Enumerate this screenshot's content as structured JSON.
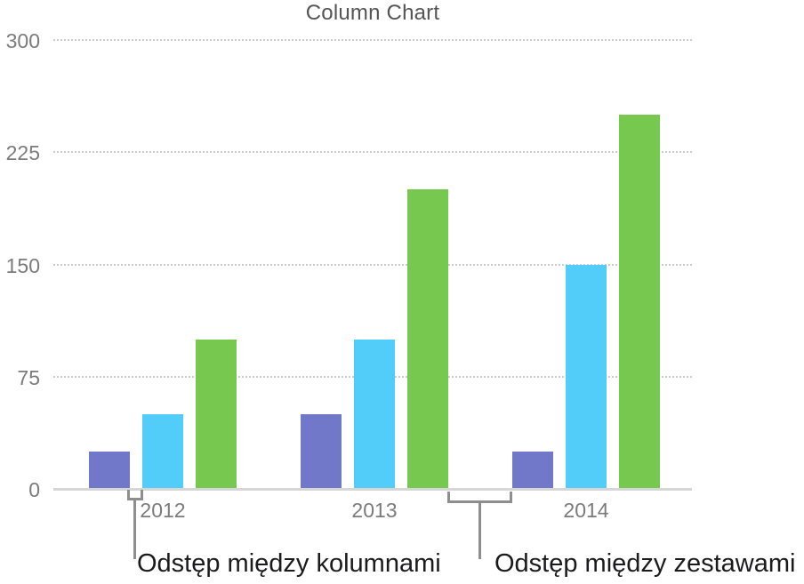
{
  "chart_data": {
    "type": "bar",
    "title": "Column Chart",
    "categories": [
      "2012",
      "2013",
      "2014"
    ],
    "series": [
      {
        "name": "purple",
        "color": "#7278C9",
        "values": [
          25,
          50,
          25
        ]
      },
      {
        "name": "blue",
        "color": "#52CDFA",
        "values": [
          50,
          100,
          150
        ]
      },
      {
        "name": "green",
        "color": "#77C84F",
        "values": [
          100,
          200,
          250
        ]
      }
    ],
    "xlabel": "",
    "ylabel": "",
    "ylim": [
      0,
      300
    ],
    "yticks": [
      0,
      75,
      150,
      225,
      300
    ],
    "grid": "horizontal-dotted",
    "legend_position": "none"
  },
  "annotations": {
    "columns_gap": {
      "label": "Odstęp między kolumnami"
    },
    "sets_gap": {
      "label": "Odstęp między zestawami"
    }
  },
  "colors": {
    "background": "#ffffff",
    "title_text": "#545456",
    "axis_label_text": "#7b7b7b",
    "gridline": "#cbcbcb",
    "axis_baseline": "#d6d6d6",
    "callout_line": "#8e8e8e",
    "annotation_text": "#1b1b1d"
  }
}
